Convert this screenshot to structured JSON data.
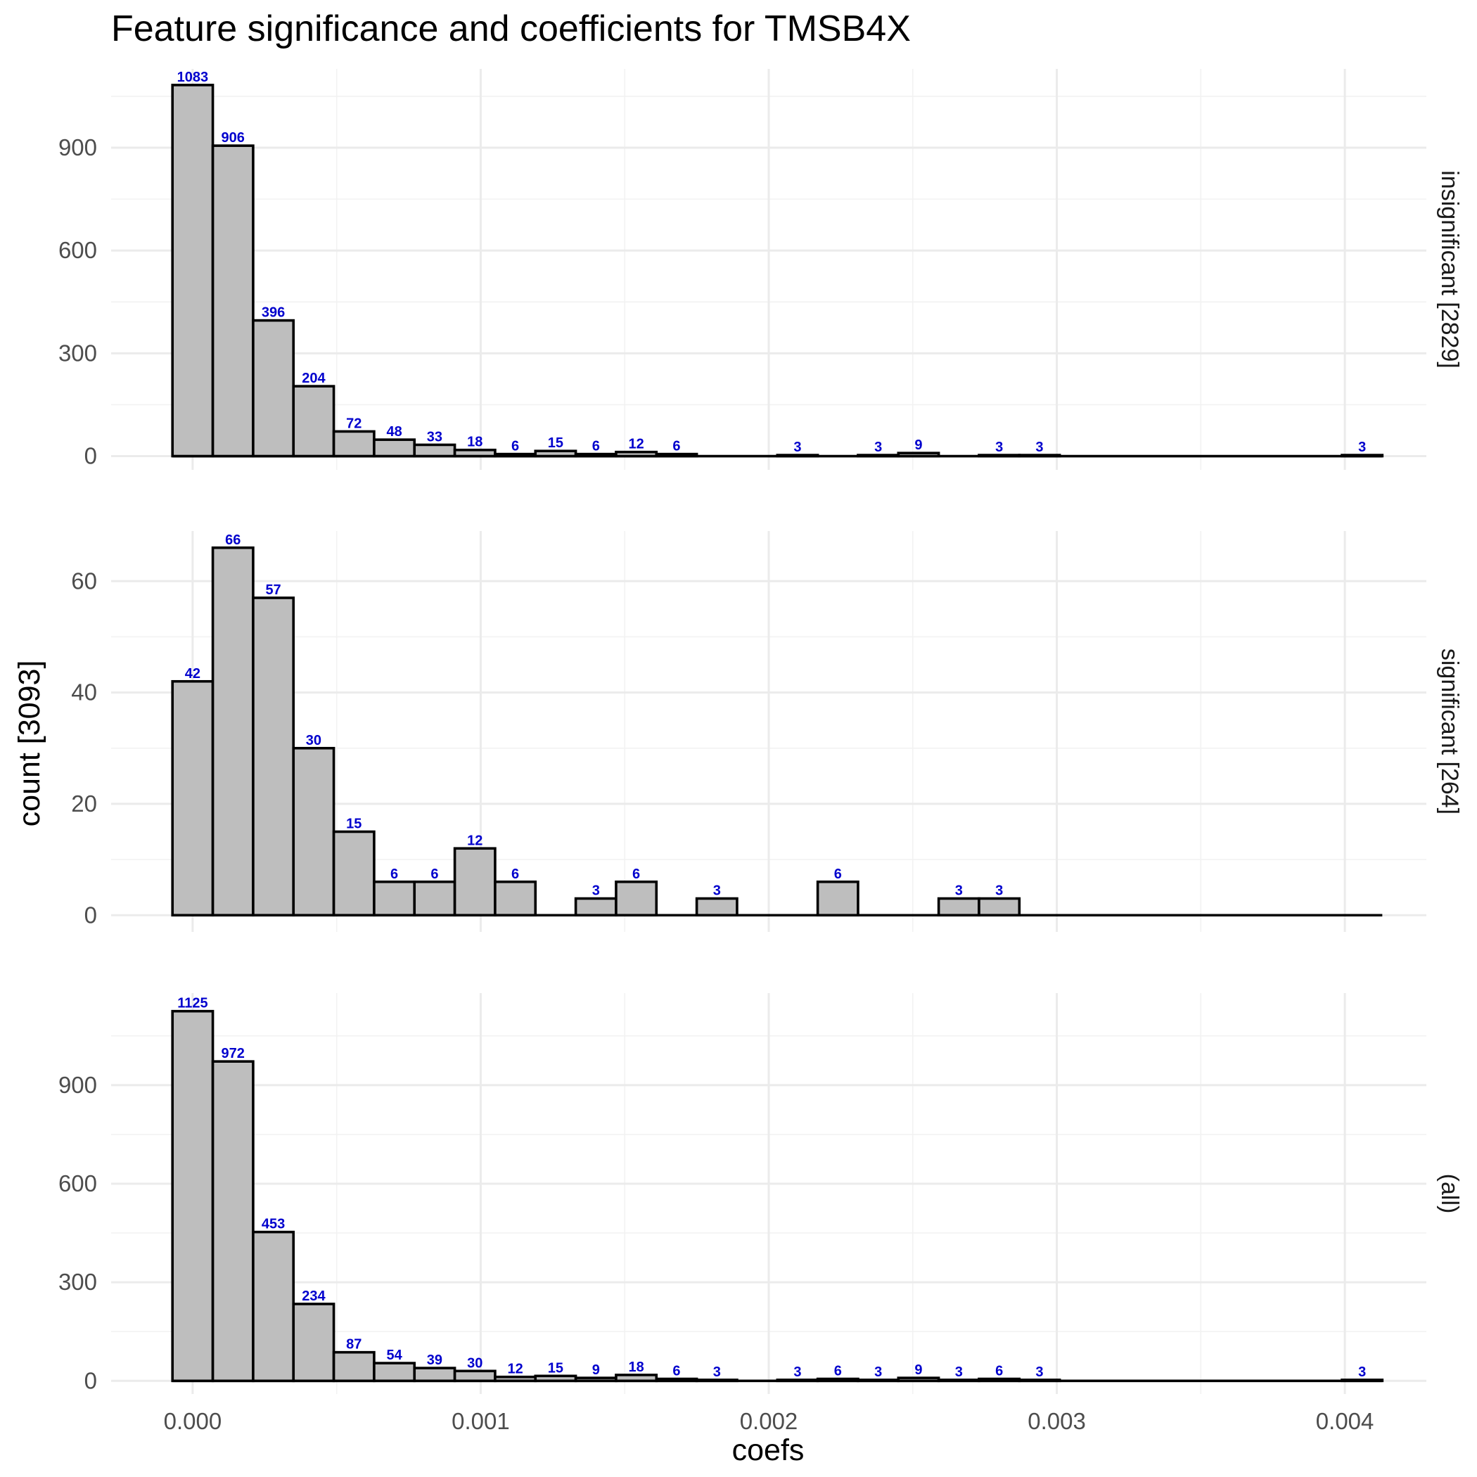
{
  "chart_data": {
    "type": "bar",
    "title": "Feature significance and coefficients for TMSB4X",
    "xlabel": "coefs",
    "ylabel": "count [3093]",
    "xlim": [
      -0.000283,
      0.004283
    ],
    "x_ticks": [
      0.0,
      0.001,
      0.002,
      0.003,
      0.004
    ],
    "x_tick_labels": [
      "0.000",
      "0.001",
      "0.002",
      "0.003",
      "0.004"
    ],
    "bin_start": -7e-05,
    "bin_width": 0.00014,
    "bin_count": 30,
    "grid": true,
    "colors": {
      "bar_fill": "#bebebe",
      "bar_outline": "#000000",
      "data_label": "#0000cd"
    },
    "panels": [
      {
        "strip_label": "insignificant [2829]",
        "ylim": [
          -40,
          1130
        ],
        "y_ticks": [
          0,
          300,
          600,
          900
        ],
        "y_tick_labels": [
          "0",
          "300",
          "600",
          "900"
        ],
        "values": [
          1083,
          906,
          396,
          204,
          72,
          48,
          33,
          18,
          6,
          15,
          6,
          12,
          6,
          0,
          0,
          3,
          0,
          3,
          9,
          0,
          3,
          3,
          0,
          0,
          0,
          0,
          0,
          0,
          0,
          3
        ]
      },
      {
        "strip_label": "significant [264]",
        "ylim": [
          -3,
          69
        ],
        "y_ticks": [
          0,
          20,
          40,
          60
        ],
        "y_tick_labels": [
          "0",
          "20",
          "40",
          "60"
        ],
        "values": [
          42,
          66,
          57,
          30,
          15,
          6,
          6,
          12,
          6,
          0,
          3,
          6,
          0,
          3,
          0,
          0,
          6,
          0,
          0,
          3,
          3,
          0,
          0,
          0,
          0,
          0,
          0,
          0,
          0,
          0
        ]
      },
      {
        "strip_label": "(all)",
        "ylim": [
          -40,
          1180
        ],
        "y_ticks": [
          0,
          300,
          600,
          900
        ],
        "y_tick_labels": [
          "0",
          "300",
          "600",
          "900"
        ],
        "values": [
          1125,
          972,
          453,
          234,
          87,
          54,
          39,
          30,
          12,
          15,
          9,
          18,
          6,
          3,
          0,
          3,
          6,
          3,
          9,
          3,
          6,
          3,
          0,
          0,
          0,
          0,
          0,
          0,
          0,
          3
        ]
      }
    ]
  }
}
